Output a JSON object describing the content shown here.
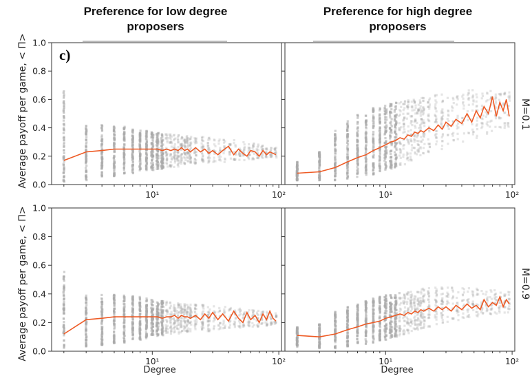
{
  "figure": {
    "panel_label": "c)",
    "column_titles": [
      "Preference for low degree proposers",
      "Preference for high degree proposers"
    ],
    "row_labels": [
      "M=0.1",
      "M=0.9"
    ],
    "xlabel": "Degree",
    "ylabel": "Average payoff per game, < Π>",
    "colors": {
      "scatter": "#a9a9a9",
      "mean_line": "#ee5a24",
      "axes": "#333333"
    }
  },
  "chart_data": [
    {
      "type": "scatter",
      "title": "Preference for low degree proposers",
      "row": "M=0.1",
      "xlabel": "",
      "ylabel": "Average payoff per game, < Π>",
      "x_scale": "log",
      "xlim": [
        1.6,
        105
      ],
      "ylim": [
        0,
        1.0
      ],
      "x_tick_labels": [
        "10^1",
        "10^2"
      ],
      "y_tick_labels": [
        "0.0",
        "0.2",
        "0.4",
        "0.6",
        "0.8",
        "1.0"
      ],
      "scatter_ranges": [
        [
          2,
          0.02,
          0.66
        ],
        [
          3,
          0.03,
          0.42
        ],
        [
          4,
          0.05,
          0.42
        ],
        [
          5,
          0.06,
          0.41
        ],
        [
          6,
          0.07,
          0.41
        ],
        [
          7,
          0.08,
          0.4
        ],
        [
          8,
          0.09,
          0.39
        ],
        [
          9,
          0.1,
          0.38
        ],
        [
          10,
          0.1,
          0.37
        ],
        [
          12,
          0.11,
          0.36
        ],
        [
          15,
          0.12,
          0.35
        ],
        [
          20,
          0.14,
          0.34
        ],
        [
          30,
          0.15,
          0.33
        ],
        [
          50,
          0.17,
          0.31
        ],
        [
          90,
          0.19,
          0.26
        ]
      ],
      "series": [
        {
          "name": "mean",
          "x": [
            2,
            3,
            4,
            5,
            6,
            7,
            8,
            9,
            10,
            11,
            12,
            13,
            14,
            15,
            16,
            17,
            18,
            19,
            20,
            22,
            24,
            26,
            28,
            30,
            33,
            36,
            40,
            44,
            48,
            52,
            56,
            60,
            65,
            70,
            75,
            80,
            85,
            90,
            95
          ],
          "y": [
            0.17,
            0.23,
            0.24,
            0.25,
            0.25,
            0.25,
            0.25,
            0.25,
            0.25,
            0.25,
            0.24,
            0.25,
            0.24,
            0.25,
            0.24,
            0.26,
            0.24,
            0.25,
            0.23,
            0.26,
            0.23,
            0.25,
            0.22,
            0.24,
            0.21,
            0.24,
            0.27,
            0.21,
            0.25,
            0.22,
            0.2,
            0.24,
            0.23,
            0.2,
            0.24,
            0.21,
            0.23,
            0.22,
            0.21
          ]
        }
      ]
    },
    {
      "type": "scatter",
      "title": "Preference for high degree proposers",
      "row": "M=0.1",
      "xlabel": "",
      "ylabel": "",
      "x_scale": "log",
      "xlim": [
        1.6,
        105
      ],
      "ylim": [
        0,
        1.0
      ],
      "x_tick_labels": [
        "10^1",
        "10^2"
      ],
      "y_tick_labels": [],
      "scatter_ranges": [
        [
          2,
          0.03,
          0.16
        ],
        [
          3,
          0.03,
          0.23
        ],
        [
          4,
          0.03,
          0.38
        ],
        [
          5,
          0.04,
          0.45
        ],
        [
          6,
          0.05,
          0.49
        ],
        [
          7,
          0.06,
          0.51
        ],
        [
          8,
          0.07,
          0.54
        ],
        [
          9,
          0.08,
          0.54
        ],
        [
          10,
          0.09,
          0.56
        ],
        [
          12,
          0.12,
          0.58
        ],
        [
          15,
          0.15,
          0.6
        ],
        [
          20,
          0.2,
          0.62
        ],
        [
          30,
          0.26,
          0.65
        ],
        [
          50,
          0.32,
          0.68
        ],
        [
          90,
          0.4,
          0.65
        ]
      ],
      "series": [
        {
          "name": "mean",
          "x": [
            2,
            3,
            4,
            5,
            6,
            7,
            8,
            9,
            10,
            11,
            12,
            13,
            14,
            15,
            16,
            17,
            18,
            19,
            20,
            22,
            24,
            26,
            28,
            30,
            33,
            36,
            40,
            44,
            48,
            52,
            56,
            60,
            65,
            70,
            75,
            80,
            85,
            90,
            95
          ],
          "y": [
            0.08,
            0.09,
            0.12,
            0.16,
            0.19,
            0.21,
            0.24,
            0.26,
            0.28,
            0.3,
            0.31,
            0.33,
            0.32,
            0.35,
            0.34,
            0.37,
            0.36,
            0.38,
            0.37,
            0.4,
            0.38,
            0.42,
            0.39,
            0.44,
            0.41,
            0.46,
            0.43,
            0.5,
            0.44,
            0.52,
            0.47,
            0.55,
            0.5,
            0.62,
            0.48,
            0.58,
            0.52,
            0.6,
            0.48
          ]
        }
      ]
    },
    {
      "type": "scatter",
      "title": "",
      "row": "M=0.9",
      "xlabel": "Degree",
      "ylabel": "Average payoff per game, < Π>",
      "x_scale": "log",
      "xlim": [
        1.6,
        105
      ],
      "ylim": [
        0,
        1.0
      ],
      "x_tick_labels": [
        "10^1",
        "10^2"
      ],
      "y_tick_labels": [
        "0.0",
        "0.2",
        "0.4",
        "0.6",
        "0.8",
        "1.0"
      ],
      "scatter_ranges": [
        [
          2,
          0.01,
          0.56
        ],
        [
          3,
          0.03,
          0.39
        ],
        [
          4,
          0.04,
          0.4
        ],
        [
          5,
          0.05,
          0.4
        ],
        [
          6,
          0.06,
          0.39
        ],
        [
          7,
          0.07,
          0.39
        ],
        [
          8,
          0.08,
          0.38
        ],
        [
          9,
          0.09,
          0.37
        ],
        [
          10,
          0.1,
          0.36
        ],
        [
          12,
          0.11,
          0.35
        ],
        [
          15,
          0.12,
          0.34
        ],
        [
          20,
          0.13,
          0.33
        ],
        [
          30,
          0.14,
          0.32
        ],
        [
          50,
          0.16,
          0.3
        ],
        [
          90,
          0.18,
          0.27
        ]
      ],
      "series": [
        {
          "name": "mean",
          "x": [
            2,
            3,
            4,
            5,
            6,
            7,
            8,
            9,
            10,
            11,
            12,
            13,
            14,
            15,
            16,
            17,
            18,
            19,
            20,
            22,
            24,
            26,
            28,
            30,
            33,
            36,
            40,
            44,
            48,
            52,
            56,
            60,
            65,
            70,
            75,
            80,
            85,
            90,
            95
          ],
          "y": [
            0.12,
            0.22,
            0.23,
            0.24,
            0.24,
            0.24,
            0.24,
            0.24,
            0.24,
            0.24,
            0.23,
            0.24,
            0.24,
            0.25,
            0.23,
            0.25,
            0.24,
            0.24,
            0.23,
            0.25,
            0.22,
            0.26,
            0.23,
            0.27,
            0.22,
            0.26,
            0.21,
            0.28,
            0.23,
            0.2,
            0.27,
            0.22,
            0.25,
            0.2,
            0.26,
            0.22,
            0.28,
            0.23,
            0.21
          ]
        }
      ]
    },
    {
      "type": "scatter",
      "title": "",
      "row": "M=0.9",
      "xlabel": "Degree",
      "ylabel": "",
      "x_scale": "log",
      "xlim": [
        1.6,
        105
      ],
      "ylim": [
        0,
        1.0
      ],
      "x_tick_labels": [
        "10^1",
        "10^2"
      ],
      "y_tick_labels": [],
      "scatter_ranges": [
        [
          2,
          0.03,
          0.17
        ],
        [
          3,
          0.02,
          0.19
        ],
        [
          4,
          0.02,
          0.28
        ],
        [
          5,
          0.03,
          0.31
        ],
        [
          6,
          0.04,
          0.33
        ],
        [
          7,
          0.05,
          0.35
        ],
        [
          8,
          0.06,
          0.37
        ],
        [
          9,
          0.07,
          0.38
        ],
        [
          10,
          0.08,
          0.39
        ],
        [
          12,
          0.1,
          0.4
        ],
        [
          15,
          0.12,
          0.42
        ],
        [
          20,
          0.16,
          0.44
        ],
        [
          30,
          0.2,
          0.45
        ],
        [
          50,
          0.24,
          0.44
        ],
        [
          90,
          0.27,
          0.42
        ]
      ],
      "series": [
        {
          "name": "mean",
          "x": [
            2,
            3,
            4,
            5,
            6,
            7,
            8,
            9,
            10,
            11,
            12,
            13,
            14,
            15,
            16,
            17,
            18,
            19,
            20,
            22,
            24,
            26,
            28,
            30,
            33,
            36,
            40,
            44,
            48,
            52,
            56,
            60,
            65,
            70,
            75,
            80,
            85,
            90,
            95
          ],
          "y": [
            0.11,
            0.1,
            0.12,
            0.15,
            0.17,
            0.19,
            0.2,
            0.21,
            0.23,
            0.24,
            0.25,
            0.26,
            0.25,
            0.27,
            0.26,
            0.28,
            0.27,
            0.29,
            0.28,
            0.3,
            0.28,
            0.31,
            0.29,
            0.31,
            0.28,
            0.32,
            0.29,
            0.33,
            0.3,
            0.32,
            0.29,
            0.36,
            0.31,
            0.34,
            0.32,
            0.38,
            0.31,
            0.36,
            0.33
          ]
        }
      ]
    }
  ]
}
